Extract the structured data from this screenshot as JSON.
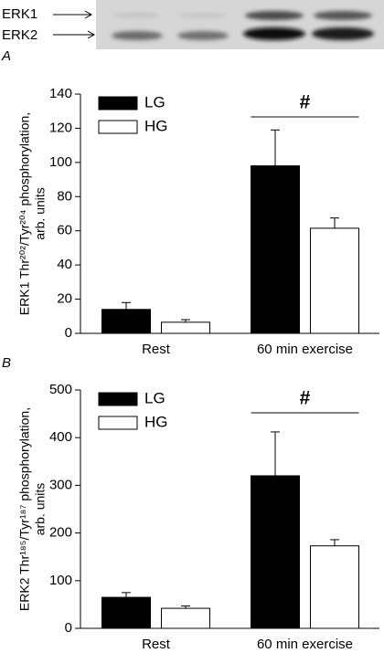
{
  "blot": {
    "labels": [
      "ERK1",
      "ERK2"
    ]
  },
  "chart_data": [
    {
      "type": "bar",
      "panel": "A",
      "ylabel": [
        "ERK1 Thr²⁰²/Tyr²⁰⁴ phosphorylation,",
        "arb. units"
      ],
      "categories": [
        "Rest",
        "60 min exercise"
      ],
      "series": [
        {
          "name": "LG",
          "color": "#000000",
          "values": [
            14,
            98
          ],
          "errors": [
            4,
            21
          ]
        },
        {
          "name": "HG",
          "color": "#ffffff",
          "values": [
            6.5,
            61.5
          ],
          "errors": [
            1.5,
            6
          ]
        }
      ],
      "ylim": [
        0,
        140
      ],
      "yticks": [
        0,
        20,
        40,
        60,
        80,
        100,
        120,
        140
      ],
      "annotation": "#",
      "legend": "upper left"
    },
    {
      "type": "bar",
      "panel": "B",
      "ylabel": [
        "ERK2 Thr¹⁸⁵/Tyr¹⁸⁷ phosphorylation,",
        "arb. units"
      ],
      "categories": [
        "Rest",
        "60 min exercise"
      ],
      "series": [
        {
          "name": "LG",
          "color": "#000000",
          "values": [
            65,
            320
          ],
          "errors": [
            10,
            92
          ]
        },
        {
          "name": "HG",
          "color": "#ffffff",
          "values": [
            42,
            173
          ],
          "errors": [
            5,
            13
          ]
        }
      ],
      "ylim": [
        0,
        500
      ],
      "yticks": [
        0,
        100,
        200,
        300,
        400,
        500
      ],
      "annotation": "#",
      "legend": "upper left"
    }
  ]
}
